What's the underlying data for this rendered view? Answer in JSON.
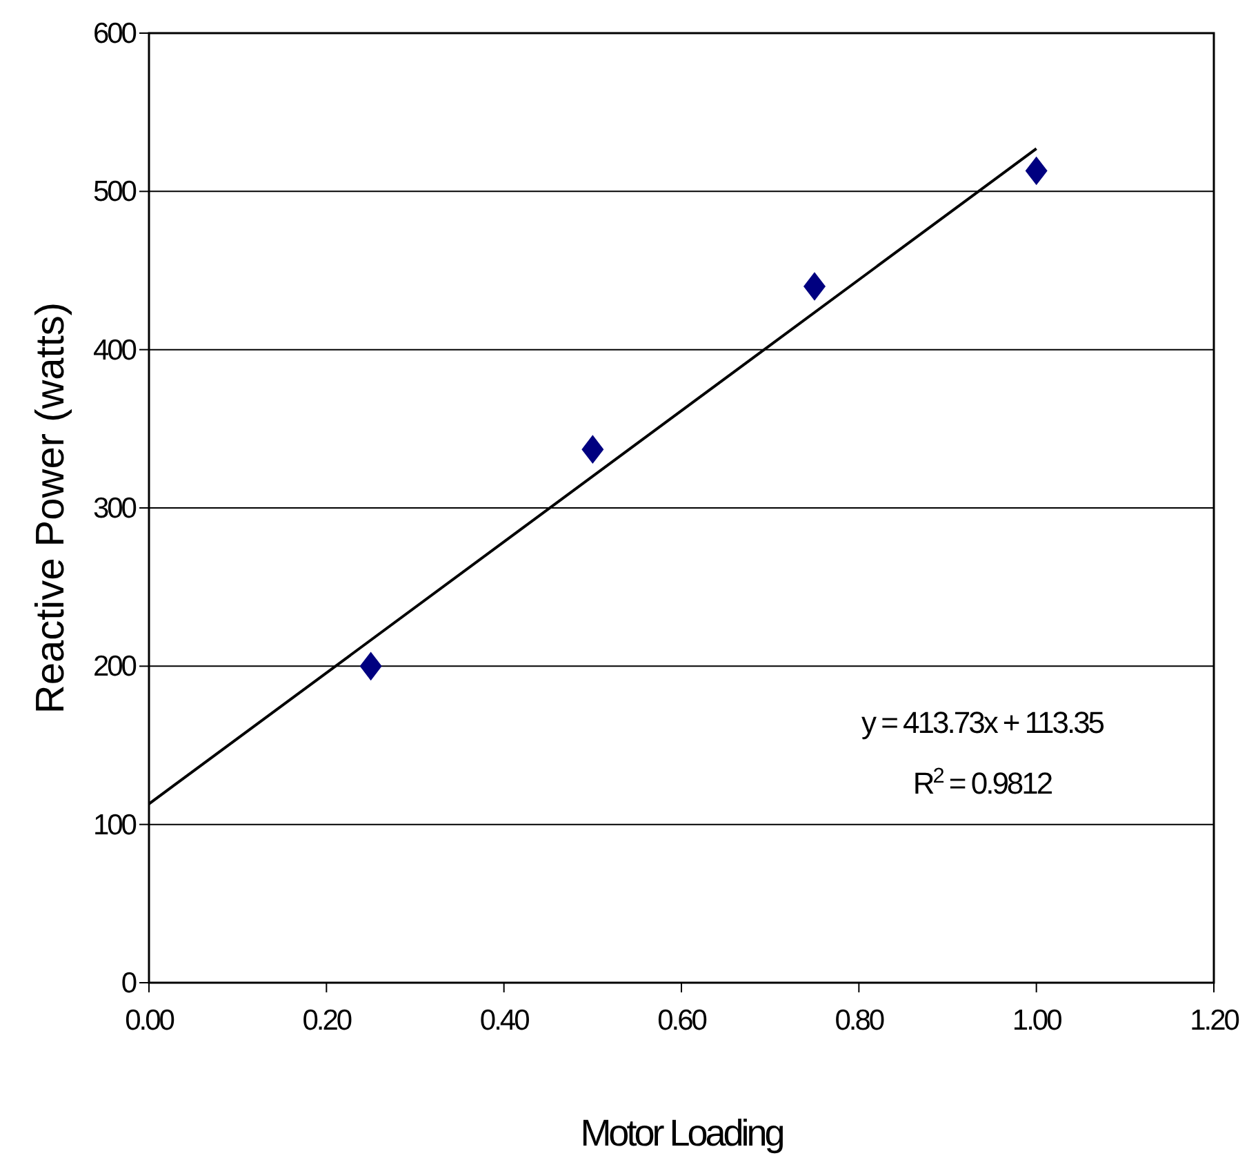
{
  "chart_data": {
    "type": "scatter",
    "xlabel": "Motor Loading",
    "ylabel": "Reactive Power (watts)",
    "x": [
      0.25,
      0.5,
      0.75,
      1.0
    ],
    "series": [
      {
        "color": "#000080",
        "values": [
          200,
          337,
          440,
          513
        ],
        "marker": "diamond"
      },
      {
        "type": "line",
        "color": "#000000",
        "x": [
          0,
          1.0
        ],
        "values": [
          113,
          527
        ],
        "marker": "none",
        "line_style": "solid"
      }
    ],
    "xlim": [
      0,
      1.2
    ],
    "xticks": [
      {
        "value": 0,
        "label": "0.00"
      },
      {
        "value": 0.2,
        "label": "0.20"
      },
      {
        "value": 0.4,
        "label": "0.40"
      },
      {
        "value": 0.6,
        "label": "0.60"
      },
      {
        "value": 0.8,
        "label": "0.80"
      },
      {
        "value": 1.0,
        "label": "1.00"
      },
      {
        "value": 1.2,
        "label": "1.20"
      }
    ],
    "ylim": [
      0,
      600
    ],
    "yticks": [
      0,
      100,
      200,
      300,
      400,
      500,
      600
    ],
    "grid": "y",
    "annotations": [
      "y = 413.73x + 113.35",
      "R$^{2}$ = 0.9812"
    ]
  }
}
